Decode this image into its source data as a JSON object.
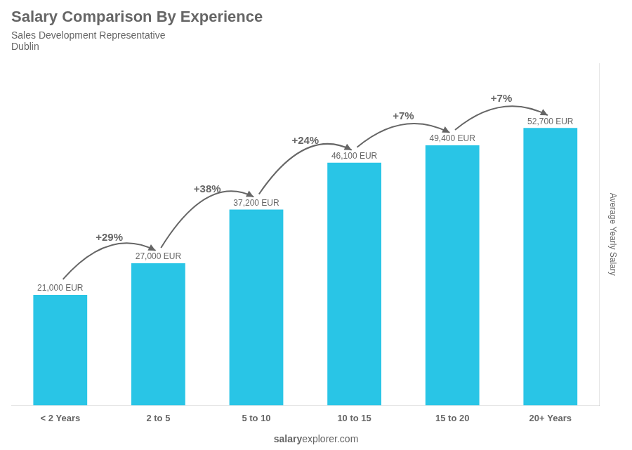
{
  "chart_data": {
    "type": "bar",
    "title": "Salary Comparison By Experience",
    "subtitle": "Sales Development Representative",
    "city": "Dublin",
    "ylabel": "Average Yearly Salary",
    "categories": [
      "< 2 Years",
      "2 to 5",
      "5 to 10",
      "10 to 15",
      "15 to 20",
      "20+ Years"
    ],
    "values": [
      21000,
      27000,
      37200,
      46100,
      49400,
      52700
    ],
    "value_labels": [
      "21,000 EUR",
      "27,000 EUR",
      "37,200 EUR",
      "46,100 EUR",
      "49,400 EUR",
      "52,700 EUR"
    ],
    "color": "#29c5e6",
    "ylim": [
      0,
      65000
    ],
    "grid": false,
    "data_labels": true,
    "tick_labels": "x",
    "annotations": [
      {
        "text": "+29%",
        "from": "< 2 Years",
        "to": "2 to 5"
      },
      {
        "text": "+38%",
        "from": "2 to 5",
        "to": "5 to 10"
      },
      {
        "text": "+24%",
        "from": "5 to 10",
        "to": "10 to 15"
      },
      {
        "text": "+7%",
        "from": "10 to 15",
        "to": "15 to 20"
      },
      {
        "text": "+7%",
        "from": "15 to 20",
        "to": "20+ Years"
      }
    ],
    "watermark": [
      "salary",
      "explorer.com"
    ]
  }
}
